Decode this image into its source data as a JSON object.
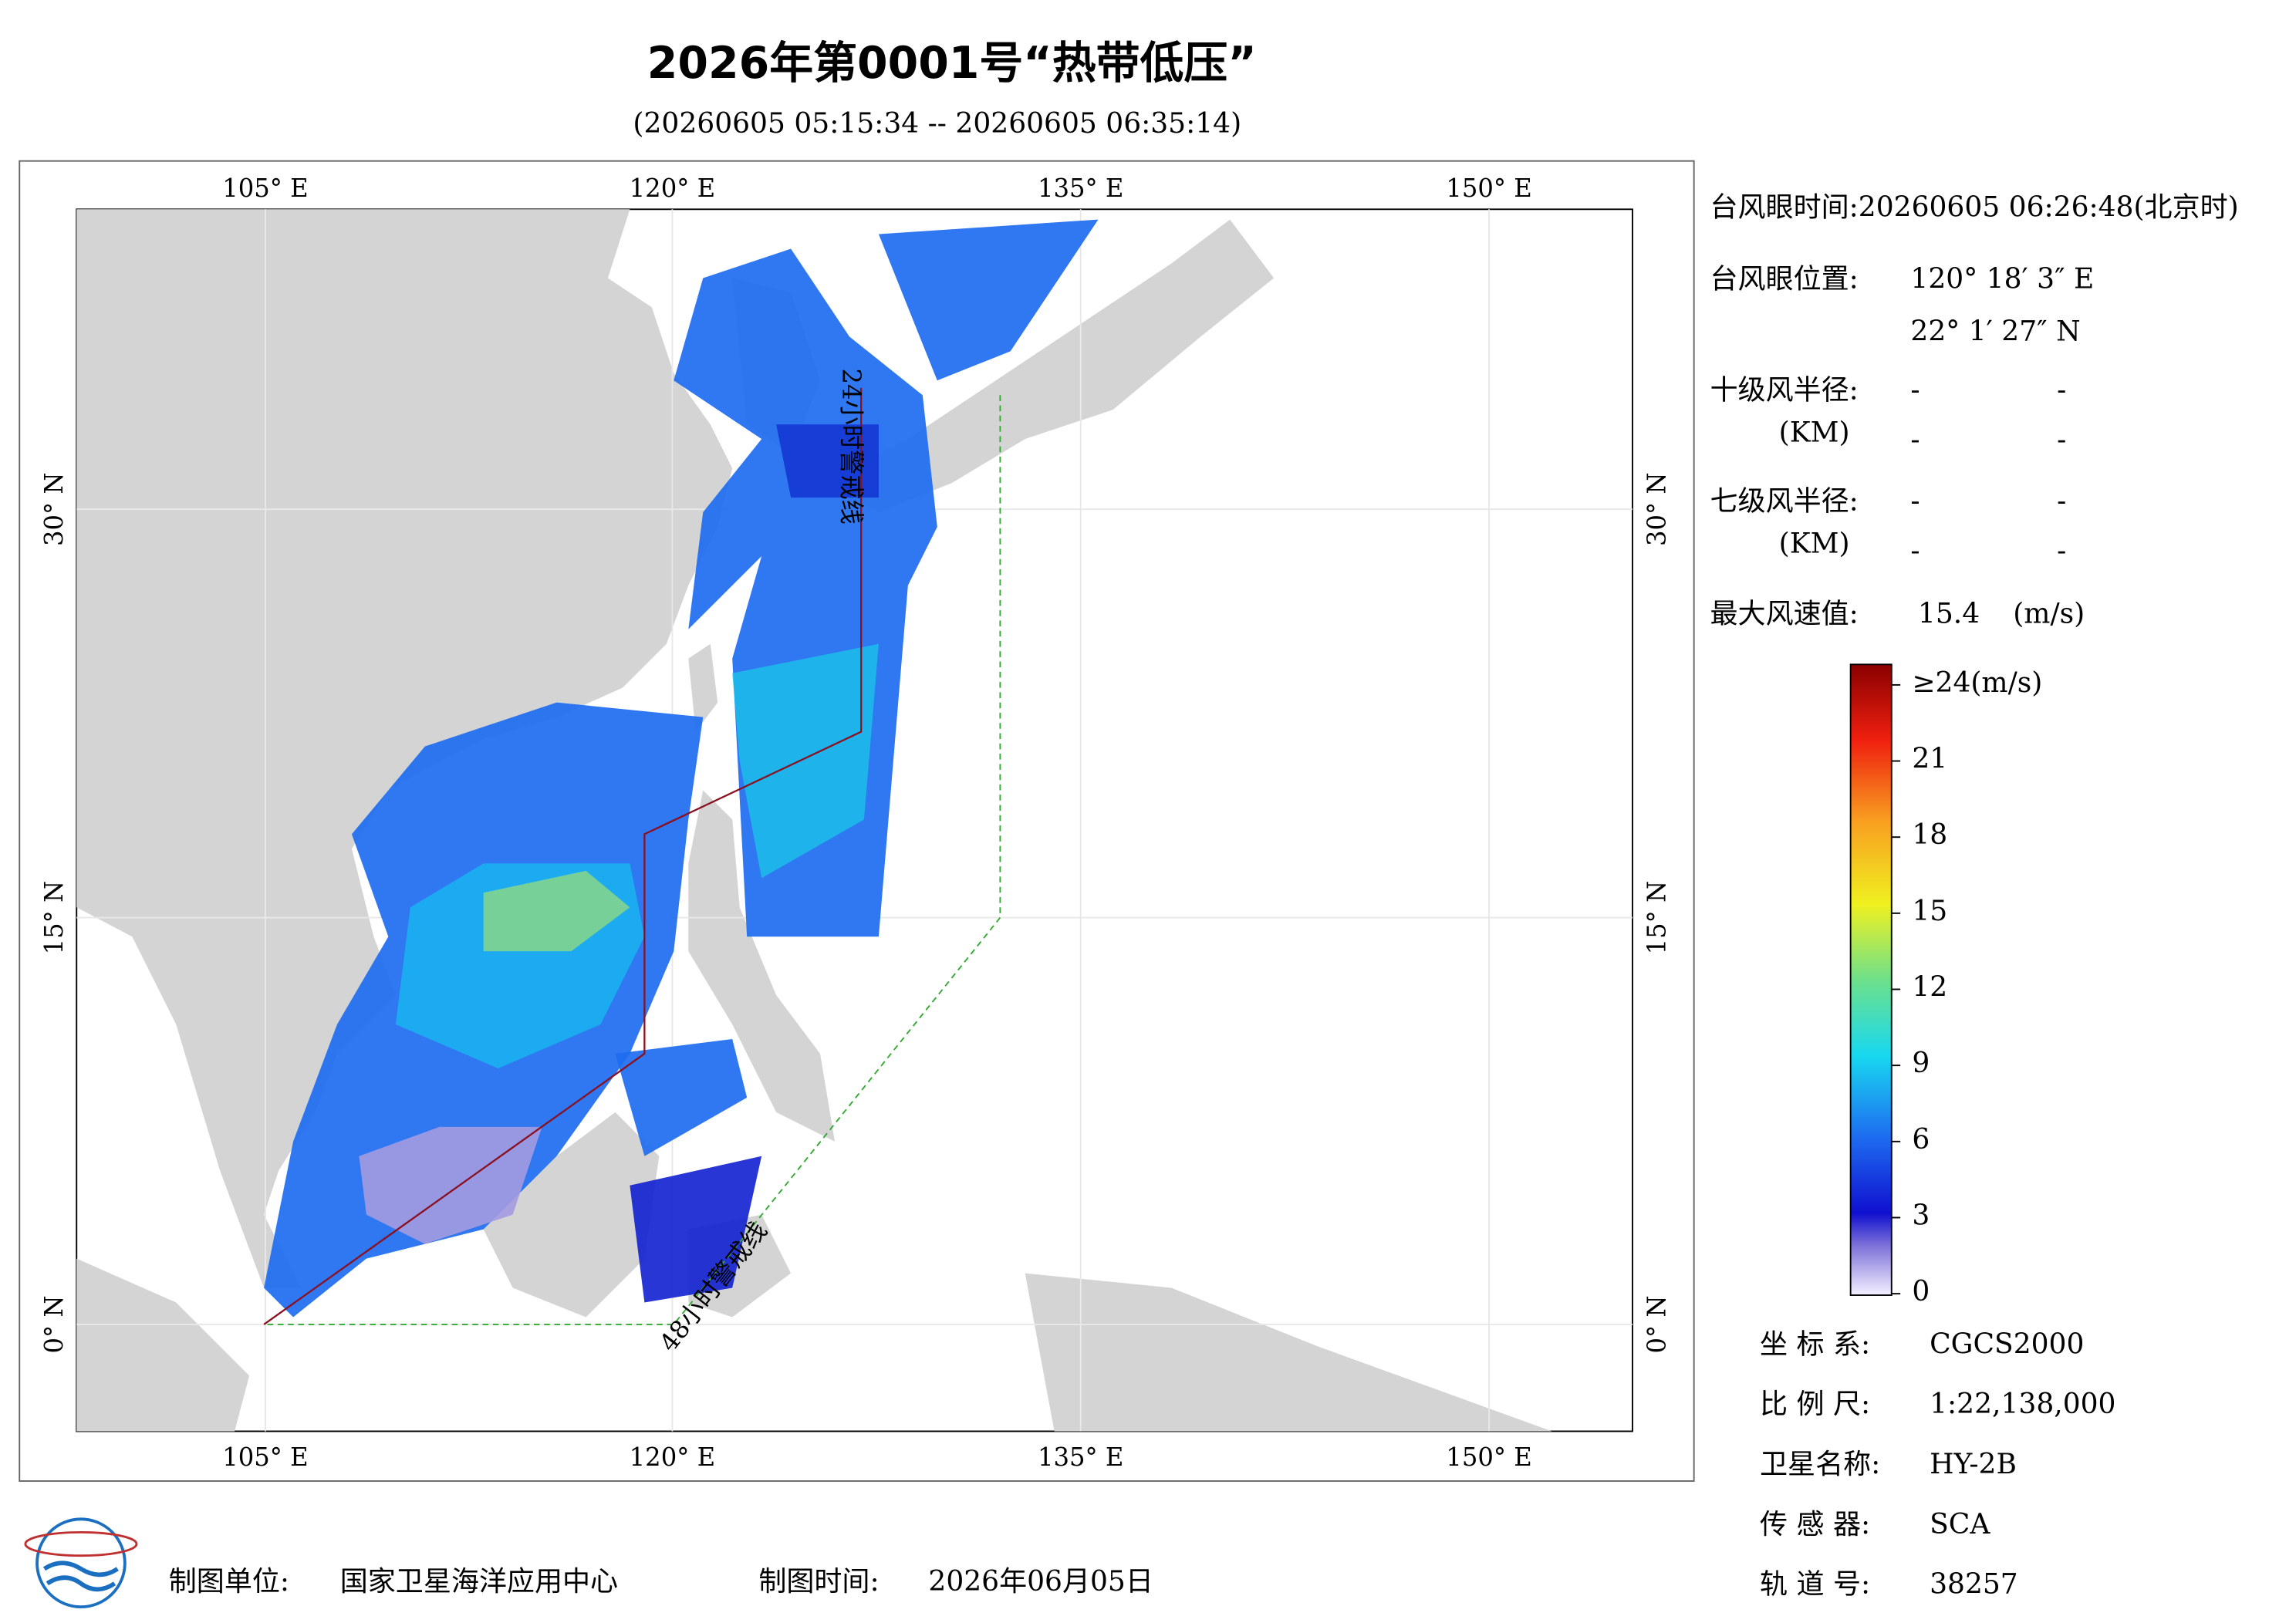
{
  "title": "2026年第0001号“热带低压”",
  "subtitle": "(20260605 05:15:34 -- 20260605 06:35:14)",
  "map": {
    "lon_labels": [
      "105° E",
      "120° E",
      "135° E",
      "150° E"
    ],
    "lat_labels": [
      "30° N",
      "15° N",
      "0° N"
    ],
    "warning_lines": [
      "24小时警戒线",
      "48小时警戒线"
    ]
  },
  "info": {
    "eye_time": "台风眼时间:20260605 06:26:48(北京时)",
    "eye_position_label": "台风眼位置:",
    "eye_lon": "120° 18′ 3″ E",
    "eye_lat": "22° 1′ 27″ N",
    "r10_label": "十级风半径:",
    "r10_unit": "(KM)",
    "r10_values": [
      "-",
      "-",
      "-",
      "-"
    ],
    "r7_label": "七级风半径:",
    "r7_unit": "(KM)",
    "r7_values": [
      "-",
      "-",
      "-",
      "-"
    ],
    "max_wind_label": "最大风速值:",
    "max_wind_value": "15.4",
    "max_wind_unit": "(m/s)"
  },
  "colorbar": {
    "range": [
      0,
      24
    ],
    "ticks": [
      {
        "value": 24,
        "label": "≥24(m/s)"
      },
      21,
      18,
      15,
      12,
      9,
      6,
      3,
      0
    ]
  },
  "meta": {
    "rows": [
      [
        "坐 标 系:",
        "CGCS2000"
      ],
      [
        "比 例 尺:",
        "1:22,138,000"
      ],
      [
        "卫星名称:",
        "HY-2B"
      ],
      [
        "传 感 器:",
        "SCA"
      ],
      [
        "轨 道 号:",
        "38257"
      ]
    ]
  },
  "footer": {
    "unit_label": "制图单位:",
    "unit": "国家卫星海洋应用中心",
    "time_label": "制图时间:",
    "time": "2026年06月05日"
  }
}
